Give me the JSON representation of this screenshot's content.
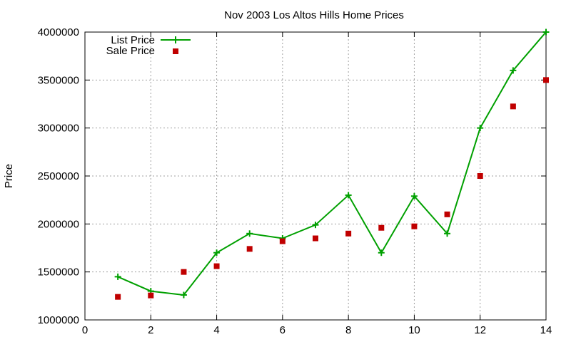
{
  "chart_data": {
    "type": "line",
    "title": "Nov 2003 Los Altos Hills Home Prices",
    "xlabel": "",
    "ylabel": "Price",
    "xlim": [
      0,
      14
    ],
    "ylim": [
      1000000,
      4000000
    ],
    "x_ticks": [
      "0",
      "2",
      "4",
      "6",
      "8",
      "10",
      "12",
      "14"
    ],
    "y_ticks": [
      "1000000",
      "1500000",
      "2000000",
      "2500000",
      "3000000",
      "3500000",
      "4000000"
    ],
    "grid": true,
    "legend_position": "top-left",
    "series": [
      {
        "name": "List Price",
        "style": "line-with-plus-markers",
        "color": "#00a000",
        "x": [
          1,
          2,
          3,
          4,
          5,
          6,
          7,
          8,
          9,
          10,
          11,
          12,
          13,
          14
        ],
        "y": [
          1450000,
          1300000,
          1260000,
          1700000,
          1900000,
          1850000,
          1990000,
          2300000,
          1700000,
          2290000,
          1900000,
          3000000,
          3600000,
          4000000
        ]
      },
      {
        "name": "Sale Price",
        "style": "square-points",
        "color": "#c00000",
        "x": [
          1,
          2,
          3,
          4,
          5,
          6,
          7,
          8,
          9,
          10,
          11,
          12,
          13,
          14
        ],
        "y": [
          1240000,
          1255000,
          1500000,
          1560000,
          1740000,
          1820000,
          1850000,
          1900000,
          1960000,
          1975000,
          2100000,
          2500000,
          3225000,
          3500000
        ]
      }
    ]
  }
}
